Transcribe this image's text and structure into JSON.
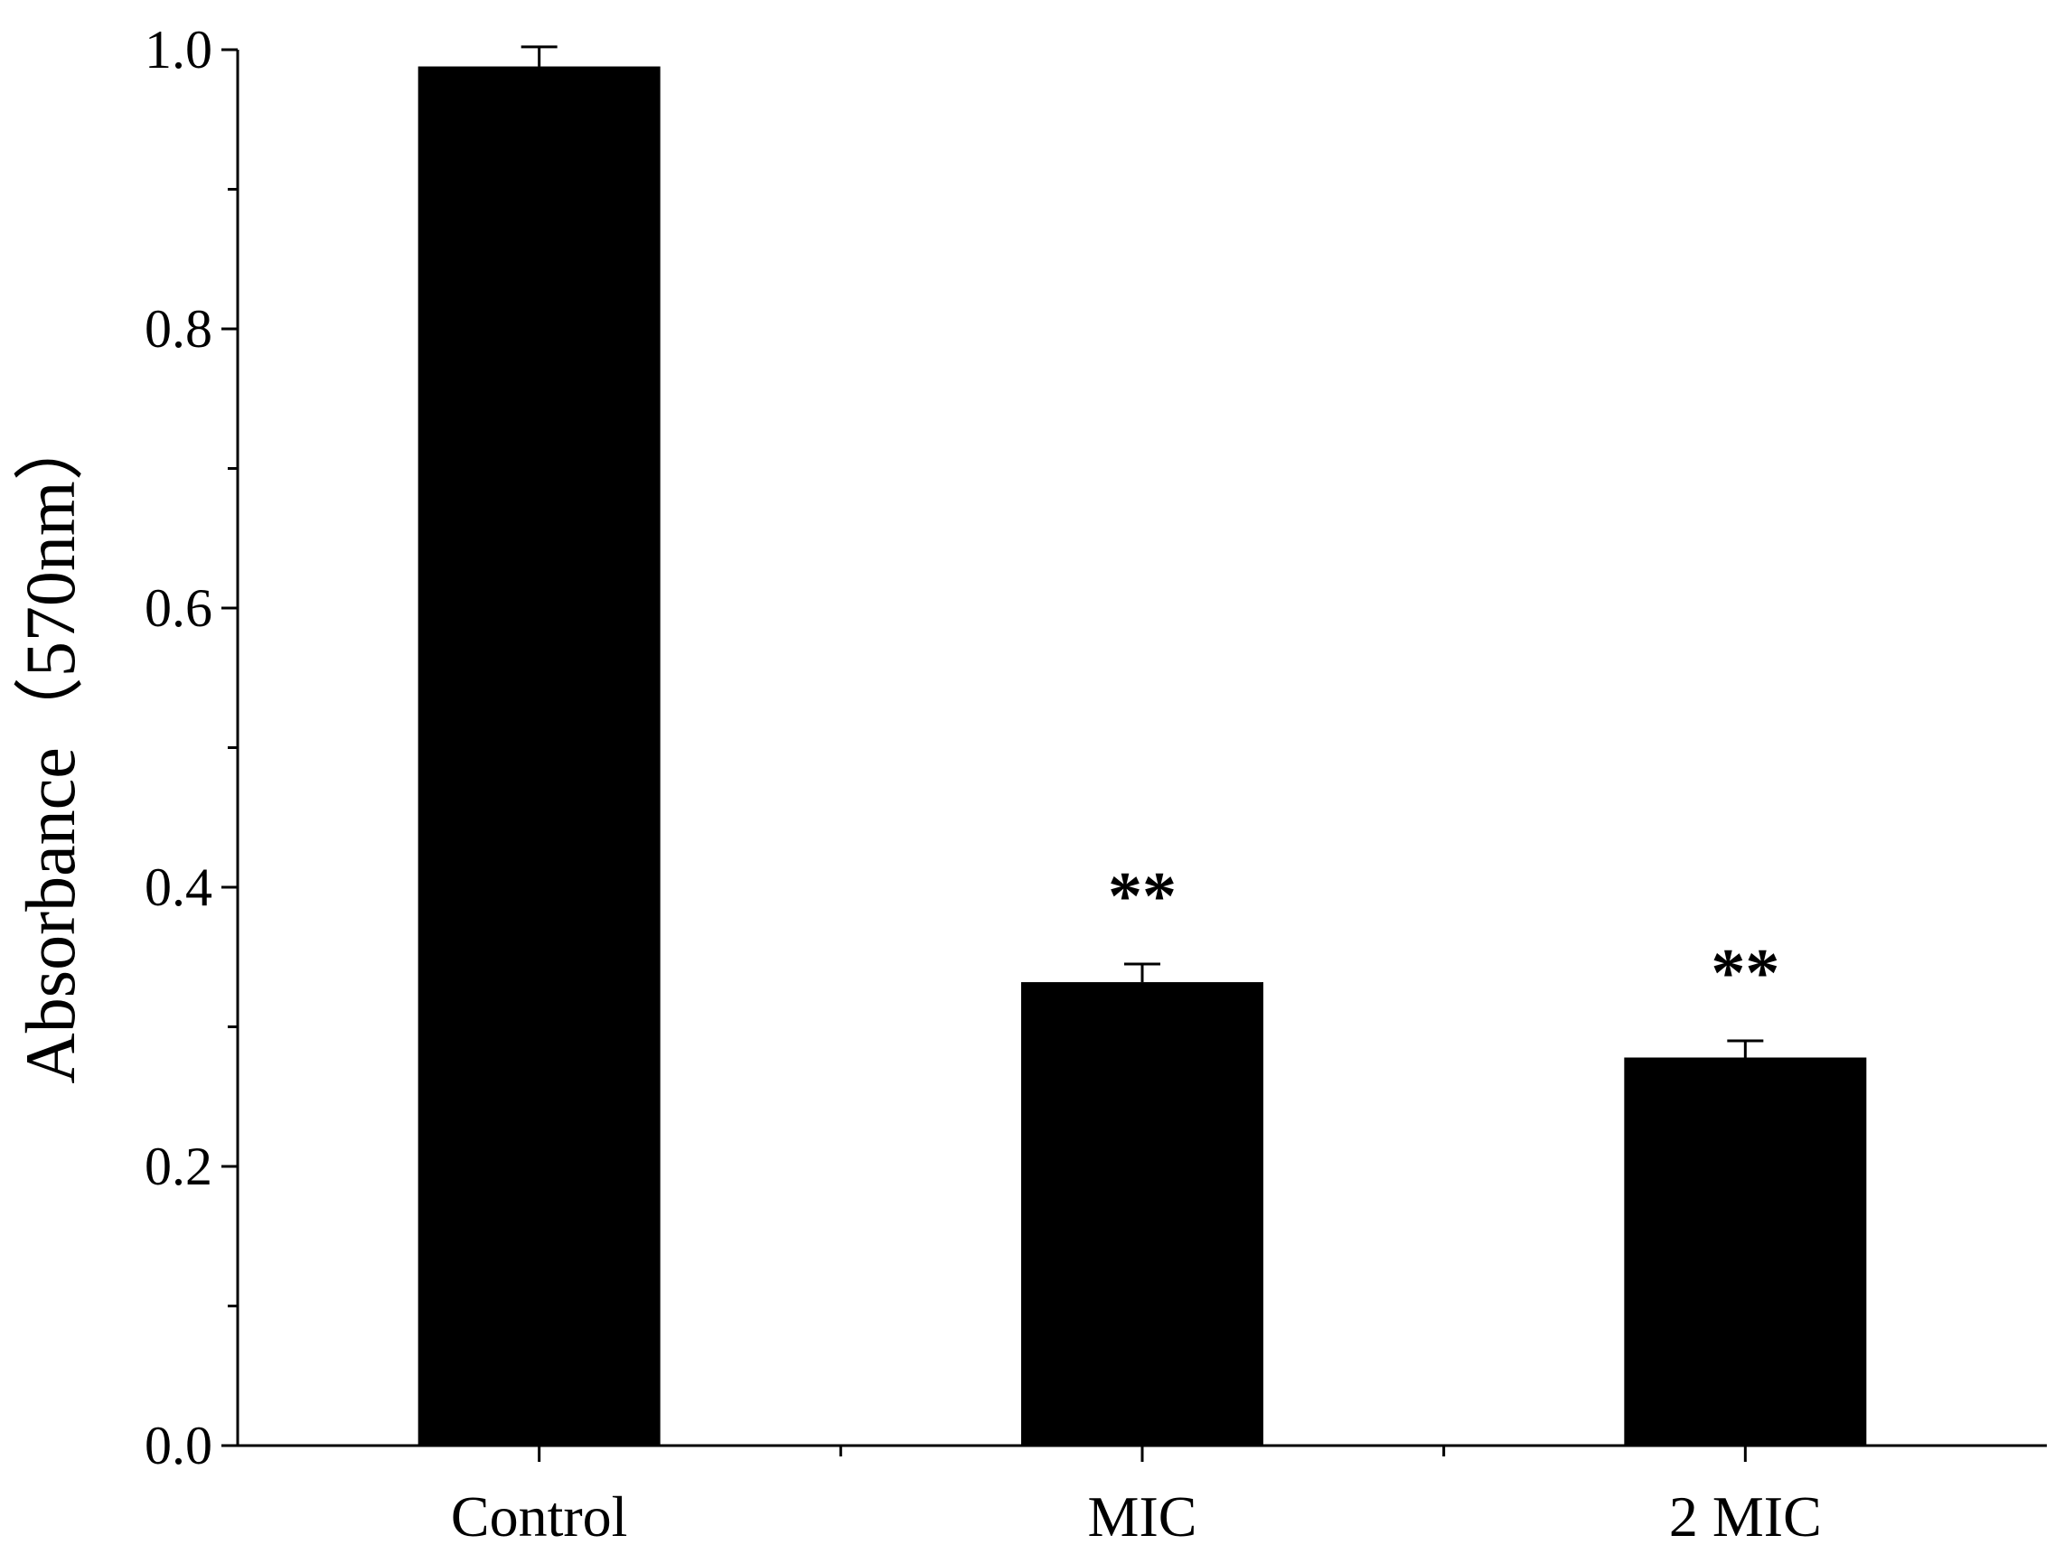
{
  "chart_data": {
    "type": "bar",
    "title": "",
    "xlabel": "",
    "ylabel": "Absorbance（570nm）",
    "ylim": [
      0.0,
      1.0
    ],
    "y_ticks": [
      "0.0",
      "0.2",
      "0.4",
      "0.6",
      "0.8",
      "1.0"
    ],
    "y_minor_step": 0.1,
    "categories": [
      "Control",
      "MIC",
      "2 MIC"
    ],
    "values": [
      0.988,
      0.332,
      0.278
    ],
    "errors": [
      0.014,
      0.013,
      0.012
    ],
    "annotations": [
      "",
      "**",
      "**"
    ],
    "grid": false,
    "legend": "none",
    "colors": {
      "bar": "#000000",
      "axis": "#000000",
      "background": "#ffffff"
    }
  }
}
